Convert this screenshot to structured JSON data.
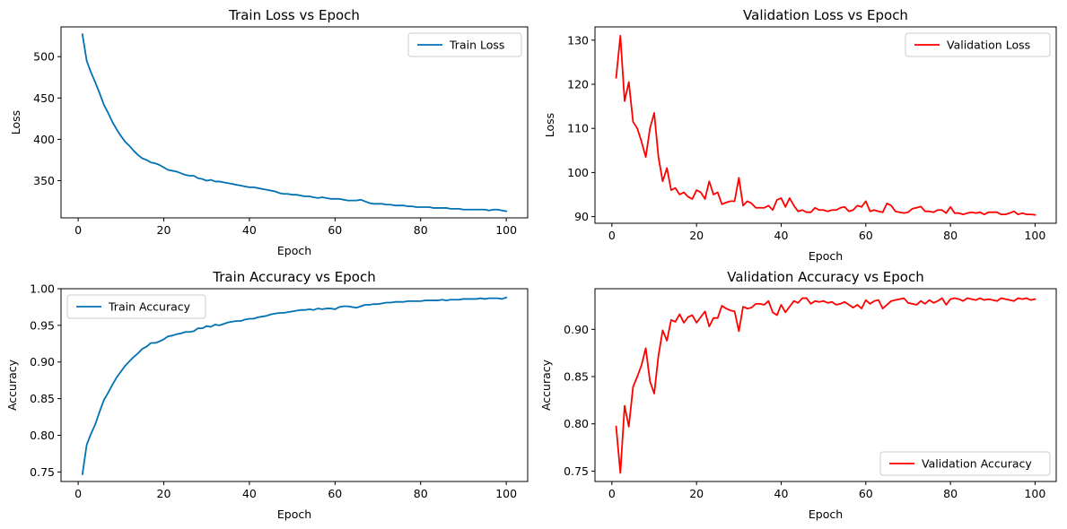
{
  "colors": {
    "train": "#0072b2",
    "validation": "#ff0000",
    "axis": "#000000",
    "legend_border": "#cccccc"
  },
  "chart_data": [
    {
      "type": "line",
      "title": "Train Loss vs Epoch",
      "xlabel": "Epoch",
      "ylabel": "Loss",
      "xlim": [
        -4,
        105
      ],
      "ylim": [
        305,
        536
      ],
      "xticks": [
        0,
        20,
        40,
        60,
        80,
        100
      ],
      "yticks": [
        350,
        400,
        450,
        500
      ],
      "ytick_labels": [
        "350",
        "400",
        "450",
        "500"
      ],
      "grid": false,
      "legend_position": "upper right",
      "series": [
        {
          "name": "Train Loss",
          "color": "#0072b2",
          "x": [
            1,
            2,
            3,
            4,
            5,
            6,
            7,
            8,
            9,
            10,
            11,
            12,
            13,
            14,
            15,
            16,
            17,
            18,
            19,
            20,
            21,
            22,
            23,
            24,
            25,
            26,
            27,
            28,
            29,
            30,
            31,
            32,
            33,
            34,
            35,
            36,
            37,
            38,
            39,
            40,
            41,
            42,
            43,
            44,
            45,
            46,
            47,
            48,
            49,
            50,
            51,
            52,
            53,
            54,
            55,
            56,
            57,
            58,
            59,
            60,
            61,
            62,
            63,
            64,
            65,
            66,
            67,
            68,
            69,
            70,
            71,
            72,
            73,
            74,
            75,
            76,
            77,
            78,
            79,
            80,
            81,
            82,
            83,
            84,
            85,
            86,
            87,
            88,
            89,
            90,
            91,
            92,
            93,
            94,
            95,
            96,
            97,
            98,
            99,
            100
          ],
          "values": [
            527,
            495,
            481,
            469,
            456,
            442,
            432,
            421,
            412,
            404,
            397,
            392,
            386,
            381,
            377,
            375,
            372,
            371,
            369,
            366,
            363,
            362,
            361,
            359,
            357,
            356,
            356,
            353,
            352,
            350,
            351,
            349,
            349,
            348,
            347,
            346,
            345,
            344,
            343,
            342,
            342,
            341,
            340,
            339,
            338,
            337,
            335,
            334,
            334,
            333,
            333,
            332,
            331,
            331,
            330,
            329,
            330,
            329,
            328,
            328,
            328,
            327,
            326,
            326,
            326,
            327,
            325,
            323,
            322,
            322,
            322,
            321,
            321,
            320,
            320,
            320,
            319,
            319,
            318,
            318,
            318,
            318,
            317,
            317,
            317,
            317,
            316,
            316,
            316,
            315,
            315,
            315,
            315,
            315,
            315,
            314,
            315,
            315,
            314,
            313
          ]
        }
      ]
    },
    {
      "type": "line",
      "title": "Validation Loss vs Epoch",
      "xlabel": "Epoch",
      "ylabel": "Loss",
      "xlim": [
        -4,
        105
      ],
      "ylim": [
        88.5,
        133
      ],
      "xticks": [
        0,
        20,
        40,
        60,
        80,
        100
      ],
      "yticks": [
        90,
        100,
        110,
        120,
        130
      ],
      "ytick_labels": [
        "90",
        "100",
        "110",
        "120",
        "130"
      ],
      "grid": false,
      "legend_position": "upper right",
      "series": [
        {
          "name": "Validation Loss",
          "color": "#ff0000",
          "x": [
            1,
            2,
            3,
            4,
            5,
            6,
            7,
            8,
            9,
            10,
            11,
            12,
            13,
            14,
            15,
            16,
            17,
            18,
            19,
            20,
            21,
            22,
            23,
            24,
            25,
            26,
            27,
            28,
            29,
            30,
            31,
            32,
            33,
            34,
            35,
            36,
            37,
            38,
            39,
            40,
            41,
            42,
            43,
            44,
            45,
            46,
            47,
            48,
            49,
            50,
            51,
            52,
            53,
            54,
            55,
            56,
            57,
            58,
            59,
            60,
            61,
            62,
            63,
            64,
            65,
            66,
            67,
            68,
            69,
            70,
            71,
            72,
            73,
            74,
            75,
            76,
            77,
            78,
            79,
            80,
            81,
            82,
            83,
            84,
            85,
            86,
            87,
            88,
            89,
            90,
            91,
            92,
            93,
            94,
            95,
            96,
            97,
            98,
            99,
            100
          ],
          "values": [
            121.5,
            131,
            116.2,
            120.5,
            111.5,
            110,
            107,
            103.5,
            110,
            113.5,
            103.5,
            98,
            101,
            96,
            96.5,
            95,
            95.5,
            94.5,
            94,
            96,
            95.5,
            94,
            98,
            95,
            95.5,
            92.8,
            93.2,
            93.5,
            93.5,
            98.8,
            92.5,
            93.5,
            93,
            92,
            92,
            92,
            92.5,
            91.5,
            93.8,
            94.2,
            92.2,
            94.2,
            92.5,
            91.2,
            91.5,
            91,
            91,
            92,
            91.5,
            91.5,
            91.2,
            91.5,
            91.5,
            92,
            92.2,
            91.2,
            91.5,
            92.5,
            92.2,
            93.5,
            91.2,
            91.5,
            91.2,
            91,
            93,
            92.5,
            91.2,
            91,
            90.8,
            91,
            91.8,
            92,
            92.3,
            91.2,
            91.2,
            91,
            91.5,
            91.5,
            90.8,
            92.2,
            90.8,
            90.8,
            90.5,
            90.8,
            91,
            90.8,
            91,
            90.5,
            91,
            91,
            91,
            90.5,
            90.5,
            90.8,
            91.2,
            90.5,
            90.8,
            90.5,
            90.5,
            90.4
          ]
        }
      ]
    },
    {
      "type": "line",
      "title": "Train Accuracy vs Epoch",
      "xlabel": "Epoch",
      "ylabel": "Accuracy",
      "xlim": [
        -4,
        105
      ],
      "ylim": [
        0.737,
        1.0
      ],
      "xticks": [
        0,
        20,
        40,
        60,
        80,
        100
      ],
      "yticks": [
        0.75,
        0.8,
        0.85,
        0.9,
        0.95,
        1.0
      ],
      "ytick_labels": [
        "0.75",
        "0.80",
        "0.85",
        "0.90",
        "0.95",
        "1.00"
      ],
      "grid": false,
      "legend_position": "upper left",
      "series": [
        {
          "name": "Train Accuracy",
          "color": "#0072b2",
          "x": [
            1,
            2,
            3,
            4,
            5,
            6,
            7,
            8,
            9,
            10,
            11,
            12,
            13,
            14,
            15,
            16,
            17,
            18,
            19,
            20,
            21,
            22,
            23,
            24,
            25,
            26,
            27,
            28,
            29,
            30,
            31,
            32,
            33,
            34,
            35,
            36,
            37,
            38,
            39,
            40,
            41,
            42,
            43,
            44,
            45,
            46,
            47,
            48,
            49,
            50,
            51,
            52,
            53,
            54,
            55,
            56,
            57,
            58,
            59,
            60,
            61,
            62,
            63,
            64,
            65,
            66,
            67,
            68,
            69,
            70,
            71,
            72,
            73,
            74,
            75,
            76,
            77,
            78,
            79,
            80,
            81,
            82,
            83,
            84,
            85,
            86,
            87,
            88,
            89,
            90,
            91,
            92,
            93,
            94,
            95,
            96,
            97,
            98,
            99,
            100
          ],
          "values": [
            0.747,
            0.787,
            0.802,
            0.815,
            0.832,
            0.848,
            0.858,
            0.869,
            0.879,
            0.887,
            0.895,
            0.901,
            0.907,
            0.912,
            0.918,
            0.921,
            0.926,
            0.926,
            0.928,
            0.931,
            0.935,
            0.936,
            0.938,
            0.939,
            0.941,
            0.941,
            0.942,
            0.946,
            0.946,
            0.949,
            0.948,
            0.951,
            0.95,
            0.952,
            0.954,
            0.955,
            0.956,
            0.956,
            0.958,
            0.959,
            0.959,
            0.961,
            0.962,
            0.963,
            0.965,
            0.966,
            0.967,
            0.967,
            0.968,
            0.969,
            0.97,
            0.971,
            0.971,
            0.972,
            0.971,
            0.973,
            0.972,
            0.973,
            0.973,
            0.972,
            0.975,
            0.976,
            0.976,
            0.975,
            0.974,
            0.976,
            0.978,
            0.978,
            0.979,
            0.979,
            0.98,
            0.981,
            0.981,
            0.982,
            0.982,
            0.982,
            0.983,
            0.983,
            0.983,
            0.983,
            0.984,
            0.984,
            0.984,
            0.984,
            0.985,
            0.984,
            0.985,
            0.985,
            0.985,
            0.986,
            0.986,
            0.986,
            0.986,
            0.987,
            0.986,
            0.987,
            0.987,
            0.987,
            0.986,
            0.988
          ]
        }
      ]
    },
    {
      "type": "line",
      "title": "Validation Accuracy vs Epoch",
      "xlabel": "Epoch",
      "ylabel": "Accuracy",
      "xlim": [
        -4,
        105
      ],
      "ylim": [
        0.739,
        0.943
      ],
      "xticks": [
        0,
        20,
        40,
        60,
        80,
        100
      ],
      "yticks": [
        0.75,
        0.8,
        0.85,
        0.9
      ],
      "ytick_labels": [
        "0.75",
        "0.80",
        "0.85",
        "0.90"
      ],
      "grid": false,
      "legend_position": "lower right",
      "series": [
        {
          "name": "Validation Accuracy",
          "color": "#ff0000",
          "x": [
            1,
            2,
            3,
            4,
            5,
            6,
            7,
            8,
            9,
            10,
            11,
            12,
            13,
            14,
            15,
            16,
            17,
            18,
            19,
            20,
            21,
            22,
            23,
            24,
            25,
            26,
            27,
            28,
            29,
            30,
            31,
            32,
            33,
            34,
            35,
            36,
            37,
            38,
            39,
            40,
            41,
            42,
            43,
            44,
            45,
            46,
            47,
            48,
            49,
            50,
            51,
            52,
            53,
            54,
            55,
            56,
            57,
            58,
            59,
            60,
            61,
            62,
            63,
            64,
            65,
            66,
            67,
            68,
            69,
            70,
            71,
            72,
            73,
            74,
            75,
            76,
            77,
            78,
            79,
            80,
            81,
            82,
            83,
            84,
            85,
            86,
            87,
            88,
            89,
            90,
            91,
            92,
            93,
            94,
            95,
            96,
            97,
            98,
            99,
            100
          ],
          "values": [
            0.797,
            0.748,
            0.819,
            0.797,
            0.839,
            0.85,
            0.862,
            0.88,
            0.845,
            0.832,
            0.872,
            0.899,
            0.888,
            0.91,
            0.908,
            0.916,
            0.907,
            0.913,
            0.915,
            0.907,
            0.913,
            0.919,
            0.903,
            0.912,
            0.912,
            0.925,
            0.922,
            0.92,
            0.919,
            0.898,
            0.924,
            0.922,
            0.923,
            0.927,
            0.927,
            0.926,
            0.93,
            0.918,
            0.915,
            0.926,
            0.918,
            0.924,
            0.93,
            0.928,
            0.933,
            0.933,
            0.927,
            0.93,
            0.929,
            0.93,
            0.928,
            0.929,
            0.926,
            0.927,
            0.929,
            0.926,
            0.923,
            0.926,
            0.922,
            0.931,
            0.927,
            0.93,
            0.931,
            0.922,
            0.926,
            0.93,
            0.931,
            0.932,
            0.933,
            0.928,
            0.927,
            0.926,
            0.93,
            0.927,
            0.931,
            0.928,
            0.93,
            0.933,
            0.926,
            0.932,
            0.933,
            0.932,
            0.93,
            0.933,
            0.932,
            0.931,
            0.933,
            0.931,
            0.932,
            0.931,
            0.93,
            0.933,
            0.932,
            0.931,
            0.93,
            0.933,
            0.932,
            0.933,
            0.931,
            0.932
          ]
        }
      ]
    }
  ]
}
